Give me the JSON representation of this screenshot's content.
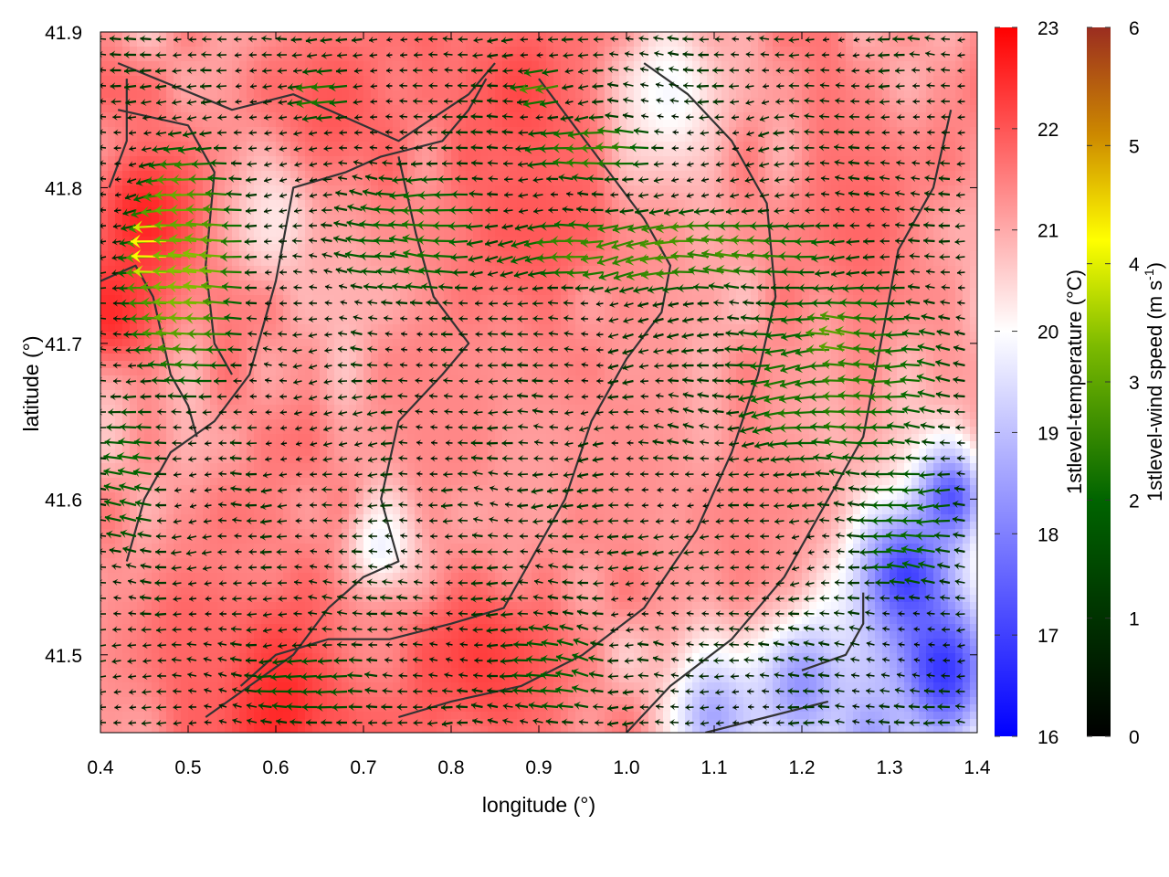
{
  "chart_data": {
    "type": "heatmap",
    "overlay": "wind-vectors",
    "title": "",
    "xlabel": "longitude (°)",
    "ylabel": "latitude (°)",
    "xlim": [
      0.4,
      1.4
    ],
    "ylim": [
      41.45,
      41.9
    ],
    "x_ticks": [
      "0.4",
      "0.5",
      "0.6",
      "0.7",
      "0.8",
      "0.9",
      "1.0",
      "1.1",
      "1.2",
      "1.3",
      "1.4"
    ],
    "y_ticks": [
      "41.5",
      "41.6",
      "41.7",
      "41.8",
      "41.9"
    ],
    "temperature_colorbar": {
      "label": "1stlevel-temperature (°C)",
      "range": [
        16,
        23
      ],
      "ticks": [
        "16",
        "17",
        "18",
        "19",
        "20",
        "21",
        "22",
        "23"
      ],
      "colors": [
        "#0000ff",
        "#ffffff",
        "#ff0000"
      ]
    },
    "wind_colorbar": {
      "label_main": "1stlevel-wind speed (m s",
      "label_sup": "-1",
      "label_end": ")",
      "range": [
        0,
        6
      ],
      "ticks": [
        "0",
        "1",
        "2",
        "3",
        "4",
        "5",
        "6"
      ],
      "colors": [
        "#000000",
        "#006400",
        "#7cba00",
        "#ffff00",
        "#cc8800",
        "#9b2d20"
      ]
    },
    "temperature_hotspots": [
      {
        "lon": 0.45,
        "lat": 41.78,
        "temp": 22.6,
        "r": 0.07
      },
      {
        "lon": 0.41,
        "lat": 41.72,
        "temp": 22.5,
        "r": 0.05
      },
      {
        "lon": 0.66,
        "lat": 41.85,
        "temp": 22.0,
        "r": 0.09
      },
      {
        "lon": 0.88,
        "lat": 41.86,
        "temp": 22.2,
        "r": 0.08
      },
      {
        "lon": 0.88,
        "lat": 41.77,
        "temp": 22.0,
        "r": 0.09
      },
      {
        "lon": 1.27,
        "lat": 41.78,
        "temp": 21.8,
        "r": 0.1
      },
      {
        "lon": 0.6,
        "lat": 41.47,
        "temp": 22.6,
        "r": 0.09
      },
      {
        "lon": 0.83,
        "lat": 41.5,
        "temp": 22.3,
        "r": 0.08
      },
      {
        "lon": 0.5,
        "lat": 41.52,
        "temp": 21.8,
        "r": 0.08
      },
      {
        "lon": 0.8,
        "lat": 41.66,
        "temp": 21.4,
        "r": 0.1
      },
      {
        "lon": 1.0,
        "lat": 41.62,
        "temp": 21.3,
        "r": 0.1
      },
      {
        "lon": 1.17,
        "lat": 41.6,
        "temp": 21.4,
        "r": 0.08
      },
      {
        "lon": 1.05,
        "lat": 41.86,
        "temp": 19.9,
        "r": 0.06
      },
      {
        "lon": 0.72,
        "lat": 41.57,
        "temp": 19.8,
        "r": 0.04
      },
      {
        "lon": 0.6,
        "lat": 41.78,
        "temp": 20.3,
        "r": 0.05
      },
      {
        "lon": 1.32,
        "lat": 41.55,
        "temp": 17.0,
        "r": 0.06
      },
      {
        "lon": 1.36,
        "lat": 41.49,
        "temp": 16.8,
        "r": 0.06
      },
      {
        "lon": 1.37,
        "lat": 41.6,
        "temp": 17.3,
        "r": 0.04
      },
      {
        "lon": 1.2,
        "lat": 41.48,
        "temp": 18.3,
        "r": 0.06
      },
      {
        "lon": 1.1,
        "lat": 41.46,
        "temp": 18.6,
        "r": 0.05
      },
      {
        "lon": 1.28,
        "lat": 41.45,
        "temp": 18.5,
        "r": 0.05
      }
    ],
    "wind_jets": [
      {
        "lon0": 0.43,
        "lon1": 0.58,
        "lat0": 41.66,
        "lat1": 41.84,
        "speed": 3.2
      },
      {
        "lon0": 0.465,
        "lon1": 0.49,
        "lat0": 41.73,
        "lat1": 41.79,
        "speed": 4.2
      },
      {
        "lon0": 0.82,
        "lon1": 1.3,
        "lat0": 41.73,
        "lat1": 41.79,
        "speed": 2.6
      },
      {
        "lon0": 0.88,
        "lon1": 1.05,
        "lat0": 41.8,
        "lat1": 41.85,
        "speed": 2.4
      },
      {
        "lon0": 0.65,
        "lon1": 0.88,
        "lat0": 41.72,
        "lat1": 41.82,
        "speed": 2.1
      },
      {
        "lon0": 1.1,
        "lon1": 1.4,
        "lat0": 41.6,
        "lat1": 41.76,
        "speed": 2.3
      },
      {
        "lon0": 1.25,
        "lon1": 1.4,
        "lat0": 41.53,
        "lat1": 41.64,
        "speed": 1.9
      },
      {
        "lon0": 0.4,
        "lon1": 0.48,
        "lat0": 41.55,
        "lat1": 41.68,
        "speed": 2.0
      },
      {
        "lon0": 0.55,
        "lon1": 0.75,
        "lat0": 41.45,
        "lat1": 41.51,
        "speed": 1.7
      },
      {
        "lon0": 0.85,
        "lon1": 1.0,
        "lat0": 41.45,
        "lat1": 41.53,
        "speed": 1.8
      },
      {
        "lon0": 0.62,
        "lon1": 0.7,
        "lat0": 41.84,
        "lat1": 41.88,
        "speed": 2.3
      },
      {
        "lon0": 0.88,
        "lon1": 0.94,
        "lat0": 41.85,
        "lat1": 41.88,
        "speed": 2.8
      },
      {
        "lon0": 1.2,
        "lon1": 1.29,
        "lat0": 41.68,
        "lat1": 41.73,
        "speed": 2.8
      }
    ],
    "contours": [
      [
        [
          0.42,
          41.88
        ],
        [
          0.55,
          41.85
        ],
        [
          0.62,
          41.86
        ],
        [
          0.74,
          41.83
        ],
        [
          0.82,
          41.86
        ],
        [
          0.85,
          41.88
        ]
      ],
      [
        [
          0.42,
          41.85
        ],
        [
          0.5,
          41.84
        ],
        [
          0.53,
          41.81
        ],
        [
          0.52,
          41.75
        ],
        [
          0.53,
          41.7
        ],
        [
          0.55,
          41.68
        ]
      ],
      [
        [
          0.4,
          41.74
        ],
        [
          0.44,
          41.75
        ],
        [
          0.46,
          41.73
        ],
        [
          0.48,
          41.68
        ],
        [
          0.5,
          41.66
        ],
        [
          0.51,
          41.64
        ]
      ],
      [
        [
          0.43,
          41.56
        ],
        [
          0.45,
          41.6
        ],
        [
          0.48,
          41.63
        ],
        [
          0.53,
          41.65
        ],
        [
          0.57,
          41.68
        ],
        [
          0.6,
          41.74
        ],
        [
          0.62,
          41.8
        ],
        [
          0.68,
          41.81
        ],
        [
          0.72,
          41.82
        ],
        [
          0.79,
          41.83
        ],
        [
          0.82,
          41.85
        ],
        [
          0.84,
          41.87
        ]
      ],
      [
        [
          0.52,
          41.46
        ],
        [
          0.57,
          41.48
        ],
        [
          0.62,
          41.5
        ],
        [
          0.66,
          41.53
        ],
        [
          0.7,
          41.55
        ],
        [
          0.74,
          41.56
        ],
        [
          0.72,
          41.6
        ],
        [
          0.74,
          41.65
        ],
        [
          0.79,
          41.68
        ],
        [
          0.82,
          41.7
        ],
        [
          0.78,
          41.73
        ],
        [
          0.76,
          41.77
        ],
        [
          0.74,
          41.82
        ]
      ],
      [
        [
          0.56,
          41.48
        ],
        [
          0.6,
          41.5
        ],
        [
          0.66,
          41.51
        ],
        [
          0.73,
          41.51
        ],
        [
          0.8,
          41.52
        ],
        [
          0.86,
          41.53
        ],
        [
          0.9,
          41.57
        ],
        [
          0.93,
          41.6
        ],
        [
          0.96,
          41.65
        ],
        [
          1.0,
          41.69
        ],
        [
          1.04,
          41.72
        ],
        [
          1.05,
          41.75
        ],
        [
          1.02,
          41.78
        ],
        [
          0.98,
          41.81
        ],
        [
          0.94,
          41.84
        ],
        [
          0.9,
          41.87
        ]
      ],
      [
        [
          0.74,
          41.46
        ],
        [
          0.8,
          41.47
        ],
        [
          0.88,
          41.48
        ],
        [
          0.95,
          41.5
        ],
        [
          1.02,
          41.53
        ],
        [
          1.08,
          41.58
        ],
        [
          1.12,
          41.63
        ],
        [
          1.15,
          41.68
        ],
        [
          1.17,
          41.73
        ],
        [
          1.16,
          41.79
        ],
        [
          1.12,
          41.83
        ],
        [
          1.07,
          41.86
        ],
        [
          1.02,
          41.88
        ]
      ],
      [
        [
          1.0,
          41.45
        ],
        [
          1.05,
          41.48
        ],
        [
          1.12,
          41.51
        ],
        [
          1.18,
          41.55
        ],
        [
          1.23,
          41.6
        ],
        [
          1.27,
          41.64
        ],
        [
          1.29,
          41.7
        ],
        [
          1.31,
          41.76
        ],
        [
          1.35,
          41.8
        ],
        [
          1.37,
          41.85
        ]
      ],
      [
        [
          1.09,
          41.45
        ],
        [
          1.16,
          41.46
        ],
        [
          1.23,
          41.47
        ]
      ],
      [
        [
          1.2,
          41.49
        ],
        [
          1.25,
          41.5
        ],
        [
          1.27,
          41.52
        ],
        [
          1.27,
          41.54
        ]
      ],
      [
        [
          0.41,
          41.8
        ],
        [
          0.43,
          41.83
        ],
        [
          0.43,
          41.87
        ]
      ]
    ]
  }
}
